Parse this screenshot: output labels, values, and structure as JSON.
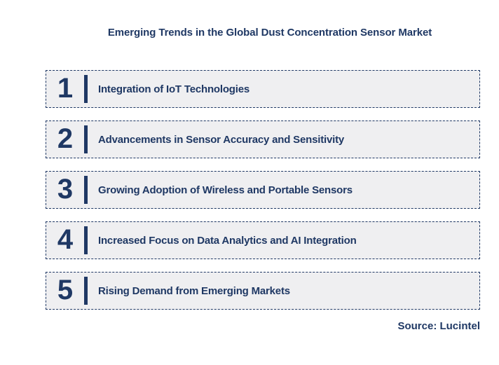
{
  "title": "Emerging Trends in the Global Dust Concentration Sensor Market",
  "trends": [
    {
      "number": "1",
      "label": "Integration of IoT Technologies"
    },
    {
      "number": "2",
      "label": "Advancements in Sensor Accuracy and Sensitivity"
    },
    {
      "number": "3",
      "label": "Growing Adoption of Wireless and Portable Sensors"
    },
    {
      "number": "4",
      "label": "Increased Focus on Data Analytics and AI Integration"
    },
    {
      "number": "5",
      "label": "Rising Demand from Emerging Markets"
    }
  ],
  "source": "Source: Lucintel",
  "colors": {
    "navy": "#1f3864",
    "box_background": "#efeff1",
    "page_background": "#ffffff"
  }
}
